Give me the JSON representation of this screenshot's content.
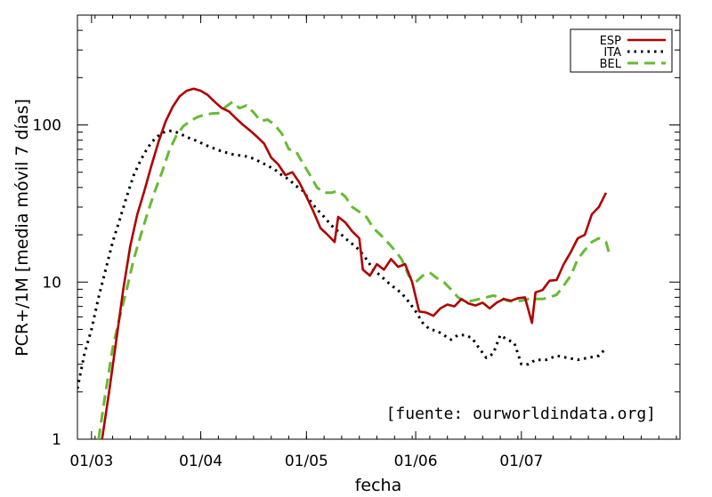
{
  "chart_data": {
    "type": "line",
    "xlabel": "fecha",
    "ylabel": "PCR+/1M [media móvil 7 días]",
    "annotation": "[fuente: ourworldindata.org]",
    "y_scale": "log",
    "ylim": [
      1,
      500
    ],
    "xlim": [
      "2020-02-26",
      "2020-08-15"
    ],
    "x_ticks": [
      {
        "date": "2020-03-01",
        "label": "01/03"
      },
      {
        "date": "2020-04-01",
        "label": "01/04"
      },
      {
        "date": "2020-05-01",
        "label": "01/05"
      },
      {
        "date": "2020-06-01",
        "label": "01/06"
      },
      {
        "date": "2020-07-01",
        "label": "01/07"
      }
    ],
    "y_ticks": [
      {
        "value": 1,
        "label": "1"
      },
      {
        "value": 10,
        "label": "10"
      },
      {
        "value": 100,
        "label": "100"
      }
    ],
    "legend_position": "top-right",
    "series": [
      {
        "name": "ESP",
        "color": "#b00000",
        "dash": "solid",
        "points": [
          [
            "2020-03-04",
            1.0
          ],
          [
            "2020-03-06",
            2.0
          ],
          [
            "2020-03-08",
            4.2
          ],
          [
            "2020-03-10",
            9.0
          ],
          [
            "2020-03-12",
            17.0
          ],
          [
            "2020-03-14",
            27.0
          ],
          [
            "2020-03-16",
            38.0
          ],
          [
            "2020-03-18",
            55.0
          ],
          [
            "2020-03-20",
            78.0
          ],
          [
            "2020-03-22",
            105.0
          ],
          [
            "2020-03-24",
            130.0
          ],
          [
            "2020-03-26",
            152.0
          ],
          [
            "2020-03-28",
            165.0
          ],
          [
            "2020-03-30",
            170.0
          ],
          [
            "2020-04-01",
            165.0
          ],
          [
            "2020-04-03",
            155.0
          ],
          [
            "2020-04-05",
            140.0
          ],
          [
            "2020-04-07",
            128.0
          ],
          [
            "2020-04-09",
            122.0
          ],
          [
            "2020-04-11",
            110.0
          ],
          [
            "2020-04-13",
            100.0
          ],
          [
            "2020-04-15",
            92.0
          ],
          [
            "2020-04-17",
            84.0
          ],
          [
            "2020-04-19",
            76.0
          ],
          [
            "2020-04-21",
            62.0
          ],
          [
            "2020-04-23",
            56.0
          ],
          [
            "2020-04-25",
            48.0
          ],
          [
            "2020-04-27",
            50.0
          ],
          [
            "2020-04-29",
            43.0
          ],
          [
            "2020-05-01",
            35.0
          ],
          [
            "2020-05-03",
            28.0
          ],
          [
            "2020-05-05",
            22.0
          ],
          [
            "2020-05-07",
            20.0
          ],
          [
            "2020-05-09",
            18.0
          ],
          [
            "2020-05-10",
            26.0
          ],
          [
            "2020-05-12",
            24.0
          ],
          [
            "2020-05-14",
            21.0
          ],
          [
            "2020-05-16",
            19.0
          ],
          [
            "2020-05-17",
            12.0
          ],
          [
            "2020-05-19",
            11.0
          ],
          [
            "2020-05-21",
            13.0
          ],
          [
            "2020-05-23",
            12.0
          ],
          [
            "2020-05-25",
            14.0
          ],
          [
            "2020-05-27",
            12.5
          ],
          [
            "2020-05-29",
            13.0
          ],
          [
            "2020-05-31",
            10.0
          ],
          [
            "2020-06-02",
            6.5
          ],
          [
            "2020-06-04",
            6.4
          ],
          [
            "2020-06-06",
            6.1
          ],
          [
            "2020-06-08",
            6.8
          ],
          [
            "2020-06-10",
            7.2
          ],
          [
            "2020-06-12",
            7.0
          ],
          [
            "2020-06-14",
            7.8
          ],
          [
            "2020-06-16",
            7.3
          ],
          [
            "2020-06-18",
            7.1
          ],
          [
            "2020-06-20",
            7.4
          ],
          [
            "2020-06-22",
            6.8
          ],
          [
            "2020-06-24",
            7.4
          ],
          [
            "2020-06-26",
            7.8
          ],
          [
            "2020-06-28",
            7.6
          ],
          [
            "2020-06-30",
            7.9
          ],
          [
            "2020-07-02",
            8.0
          ],
          [
            "2020-07-04",
            5.5
          ],
          [
            "2020-07-05",
            8.6
          ],
          [
            "2020-07-07",
            8.9
          ],
          [
            "2020-07-09",
            10.2
          ],
          [
            "2020-07-11",
            10.3
          ],
          [
            "2020-07-13",
            13.0
          ],
          [
            "2020-07-15",
            15.5
          ],
          [
            "2020-07-17",
            19.0
          ],
          [
            "2020-07-19",
            20.0
          ],
          [
            "2020-07-21",
            27.0
          ],
          [
            "2020-07-23",
            30.0
          ],
          [
            "2020-07-25",
            37.0
          ]
        ]
      },
      {
        "name": "ITA",
        "color": "#000000",
        "dash": "dotted",
        "points": [
          [
            "2020-02-26",
            2.1
          ],
          [
            "2020-02-28",
            3.5
          ],
          [
            "2020-03-01",
            5.0
          ],
          [
            "2020-03-03",
            8.0
          ],
          [
            "2020-03-05",
            12.0
          ],
          [
            "2020-03-07",
            18.0
          ],
          [
            "2020-03-09",
            25.0
          ],
          [
            "2020-03-11",
            35.0
          ],
          [
            "2020-03-13",
            48.0
          ],
          [
            "2020-03-15",
            60.0
          ],
          [
            "2020-03-17",
            72.0
          ],
          [
            "2020-03-19",
            82.0
          ],
          [
            "2020-03-21",
            89.0
          ],
          [
            "2020-03-23",
            92.0
          ],
          [
            "2020-03-25",
            90.0
          ],
          [
            "2020-03-27",
            86.0
          ],
          [
            "2020-03-29",
            82.0
          ],
          [
            "2020-03-31",
            79.0
          ],
          [
            "2020-04-02",
            75.0
          ],
          [
            "2020-04-04",
            72.0
          ],
          [
            "2020-04-06",
            69.0
          ],
          [
            "2020-04-08",
            67.0
          ],
          [
            "2020-04-10",
            65.0
          ],
          [
            "2020-04-12",
            64.0
          ],
          [
            "2020-04-14",
            63.0
          ],
          [
            "2020-04-16",
            61.0
          ],
          [
            "2020-04-18",
            58.0
          ],
          [
            "2020-04-20",
            55.0
          ],
          [
            "2020-04-22",
            52.0
          ],
          [
            "2020-04-24",
            48.0
          ],
          [
            "2020-04-26",
            45.0
          ],
          [
            "2020-04-28",
            41.0
          ],
          [
            "2020-04-30",
            38.0
          ],
          [
            "2020-05-02",
            33.0
          ],
          [
            "2020-05-04",
            29.0
          ],
          [
            "2020-05-06",
            26.0
          ],
          [
            "2020-05-08",
            23.0
          ],
          [
            "2020-05-10",
            21.0
          ],
          [
            "2020-05-12",
            19.0
          ],
          [
            "2020-05-14",
            17.5
          ],
          [
            "2020-05-16",
            16.0
          ],
          [
            "2020-05-18",
            14.0
          ],
          [
            "2020-05-20",
            12.0
          ],
          [
            "2020-05-22",
            11.0
          ],
          [
            "2020-05-24",
            10.0
          ],
          [
            "2020-05-26",
            9.2
          ],
          [
            "2020-05-28",
            8.5
          ],
          [
            "2020-05-30",
            7.5
          ],
          [
            "2020-06-01",
            6.5
          ],
          [
            "2020-06-03",
            5.5
          ],
          [
            "2020-06-05",
            5.0
          ],
          [
            "2020-06-07",
            4.9
          ],
          [
            "2020-06-09",
            4.6
          ],
          [
            "2020-06-11",
            4.3
          ],
          [
            "2020-06-13",
            4.6
          ],
          [
            "2020-06-15",
            4.6
          ],
          [
            "2020-06-17",
            4.4
          ],
          [
            "2020-06-19",
            3.8
          ],
          [
            "2020-06-21",
            3.3
          ],
          [
            "2020-06-23",
            3.5
          ],
          [
            "2020-06-25",
            4.6
          ],
          [
            "2020-06-27",
            4.3
          ],
          [
            "2020-06-29",
            4.1
          ],
          [
            "2020-07-01",
            3.0
          ],
          [
            "2020-07-03",
            3.0
          ],
          [
            "2020-07-05",
            3.2
          ],
          [
            "2020-07-08",
            3.2
          ],
          [
            "2020-07-11",
            3.4
          ],
          [
            "2020-07-14",
            3.3
          ],
          [
            "2020-07-17",
            3.2
          ],
          [
            "2020-07-20",
            3.3
          ],
          [
            "2020-07-23",
            3.4
          ],
          [
            "2020-07-25",
            3.8
          ]
        ]
      },
      {
        "name": "BEL",
        "color": "#66bb33",
        "dash": "dashed",
        "points": [
          [
            "2020-03-03",
            1.0
          ],
          [
            "2020-03-05",
            2.0
          ],
          [
            "2020-03-07",
            3.8
          ],
          [
            "2020-03-09",
            6.0
          ],
          [
            "2020-03-11",
            9.0
          ],
          [
            "2020-03-13",
            14.0
          ],
          [
            "2020-03-15",
            20.0
          ],
          [
            "2020-03-17",
            28.0
          ],
          [
            "2020-03-19",
            38.0
          ],
          [
            "2020-03-21",
            50.0
          ],
          [
            "2020-03-23",
            68.0
          ],
          [
            "2020-03-25",
            85.0
          ],
          [
            "2020-03-27",
            98.0
          ],
          [
            "2020-03-29",
            106.0
          ],
          [
            "2020-03-31",
            112.0
          ],
          [
            "2020-04-02",
            116.0
          ],
          [
            "2020-04-04",
            118.0
          ],
          [
            "2020-04-06",
            119.0
          ],
          [
            "2020-04-08",
            130.0
          ],
          [
            "2020-04-10",
            140.0
          ],
          [
            "2020-04-12",
            128.0
          ],
          [
            "2020-04-14",
            133.0
          ],
          [
            "2020-04-16",
            120.0
          ],
          [
            "2020-04-18",
            106.0
          ],
          [
            "2020-04-20",
            108.0
          ],
          [
            "2020-04-22",
            100.0
          ],
          [
            "2020-04-24",
            88.0
          ],
          [
            "2020-04-26",
            70.0
          ],
          [
            "2020-04-28",
            68.0
          ],
          [
            "2020-04-30",
            57.0
          ],
          [
            "2020-05-02",
            48.0
          ],
          [
            "2020-05-04",
            40.0
          ],
          [
            "2020-05-06",
            37.0
          ],
          [
            "2020-05-08",
            37.0
          ],
          [
            "2020-05-10",
            38.0
          ],
          [
            "2020-05-12",
            35.0
          ],
          [
            "2020-05-14",
            30.0
          ],
          [
            "2020-05-16",
            28.0
          ],
          [
            "2020-05-18",
            26.0
          ],
          [
            "2020-05-20",
            22.0
          ],
          [
            "2020-05-22",
            20.0
          ],
          [
            "2020-05-24",
            18.0
          ],
          [
            "2020-05-26",
            16.0
          ],
          [
            "2020-05-28",
            14.0
          ],
          [
            "2020-05-30",
            11.0
          ],
          [
            "2020-06-01",
            10.0
          ],
          [
            "2020-06-03",
            11.0
          ],
          [
            "2020-06-05",
            11.5
          ],
          [
            "2020-06-07",
            10.6
          ],
          [
            "2020-06-09",
            10.0
          ],
          [
            "2020-06-11",
            9.0
          ],
          [
            "2020-06-13",
            8.0
          ],
          [
            "2020-06-15",
            7.5
          ],
          [
            "2020-06-17",
            7.6
          ],
          [
            "2020-06-19",
            7.8
          ],
          [
            "2020-06-21",
            8.0
          ],
          [
            "2020-06-23",
            8.2
          ],
          [
            "2020-06-25",
            8.0
          ],
          [
            "2020-06-27",
            7.6
          ],
          [
            "2020-06-29",
            7.5
          ],
          [
            "2020-07-01",
            7.6
          ],
          [
            "2020-07-03",
            7.8
          ],
          [
            "2020-07-05",
            7.8
          ],
          [
            "2020-07-07",
            7.8
          ],
          [
            "2020-07-09",
            8.0
          ],
          [
            "2020-07-11",
            8.3
          ],
          [
            "2020-07-13",
            9.5
          ],
          [
            "2020-07-15",
            11.0
          ],
          [
            "2020-07-17",
            14.0
          ],
          [
            "2020-07-19",
            16.0
          ],
          [
            "2020-07-21",
            18.0
          ],
          [
            "2020-07-23",
            19.0
          ],
          [
            "2020-07-25",
            18.0
          ],
          [
            "2020-07-26",
            15.0
          ]
        ]
      }
    ]
  }
}
